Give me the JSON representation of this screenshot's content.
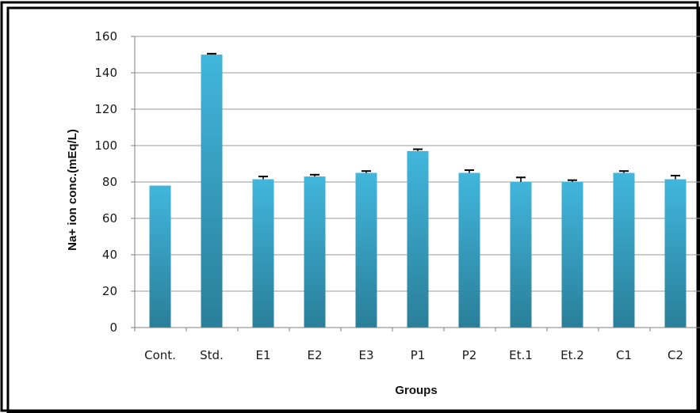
{
  "chart_data": {
    "type": "bar",
    "title": "",
    "xlabel": "Groups",
    "ylabel": "Na+ ion conc.(mEq/L)",
    "ylim": [
      0,
      160
    ],
    "yticks": [
      "0",
      "20",
      "40",
      "60",
      "80",
      "100",
      "120",
      "140",
      "160"
    ],
    "grid": true,
    "legend": "none",
    "categories": [
      "Cont.",
      "Std.",
      "E1",
      "E2",
      "E3",
      "P1",
      "P2",
      "Et.1",
      "Et.2",
      "C1",
      "C2"
    ],
    "values": [
      78,
      150,
      81.5,
      83,
      85,
      97,
      85,
      80,
      80,
      85,
      81.5
    ],
    "errors": [
      0,
      0.5,
      1.5,
      1,
      1,
      1,
      1.5,
      2.5,
      1,
      1,
      2
    ],
    "colors": {
      "bar_top": "#41b6dc",
      "bar_bottom": "#2a7f99",
      "grid": "#9a9a9a",
      "border": "#000000"
    }
  }
}
